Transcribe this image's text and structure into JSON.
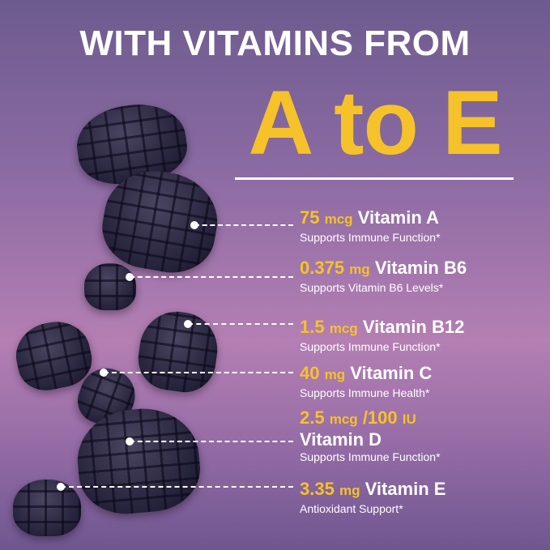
{
  "headline": "WITH VITAMINS FROM",
  "range": "A to E",
  "colors": {
    "accent": "#f6c22a",
    "text": "#ffffff",
    "background": "#8a6aa2",
    "gummy": "#24213a"
  },
  "vitamins": [
    {
      "amount": "75",
      "unit": "mcg",
      "name": "Vitamin A",
      "benefit": "Supports Immune Function*"
    },
    {
      "amount": "0.375",
      "unit": "mg",
      "name": "Vitamin B6",
      "benefit": "Supports Vitamin B6 Levels*"
    },
    {
      "amount": "1.5",
      "unit": "mcg",
      "name": "Vitamin B12",
      "benefit": "Supports Immune Function*"
    },
    {
      "amount": "40",
      "unit": "mg",
      "name": "Vitamin C",
      "benefit": "Supports Immune Health*"
    },
    {
      "amount": "2.5",
      "unit": "mcg",
      "amount2": "/100",
      "unit2": "IU",
      "name": "Vitamin D",
      "benefit": "Supports Immune Function*"
    },
    {
      "amount": "3.35",
      "unit": "mg",
      "name": "Vitamin E",
      "benefit": "Antioxidant Support*"
    }
  ]
}
